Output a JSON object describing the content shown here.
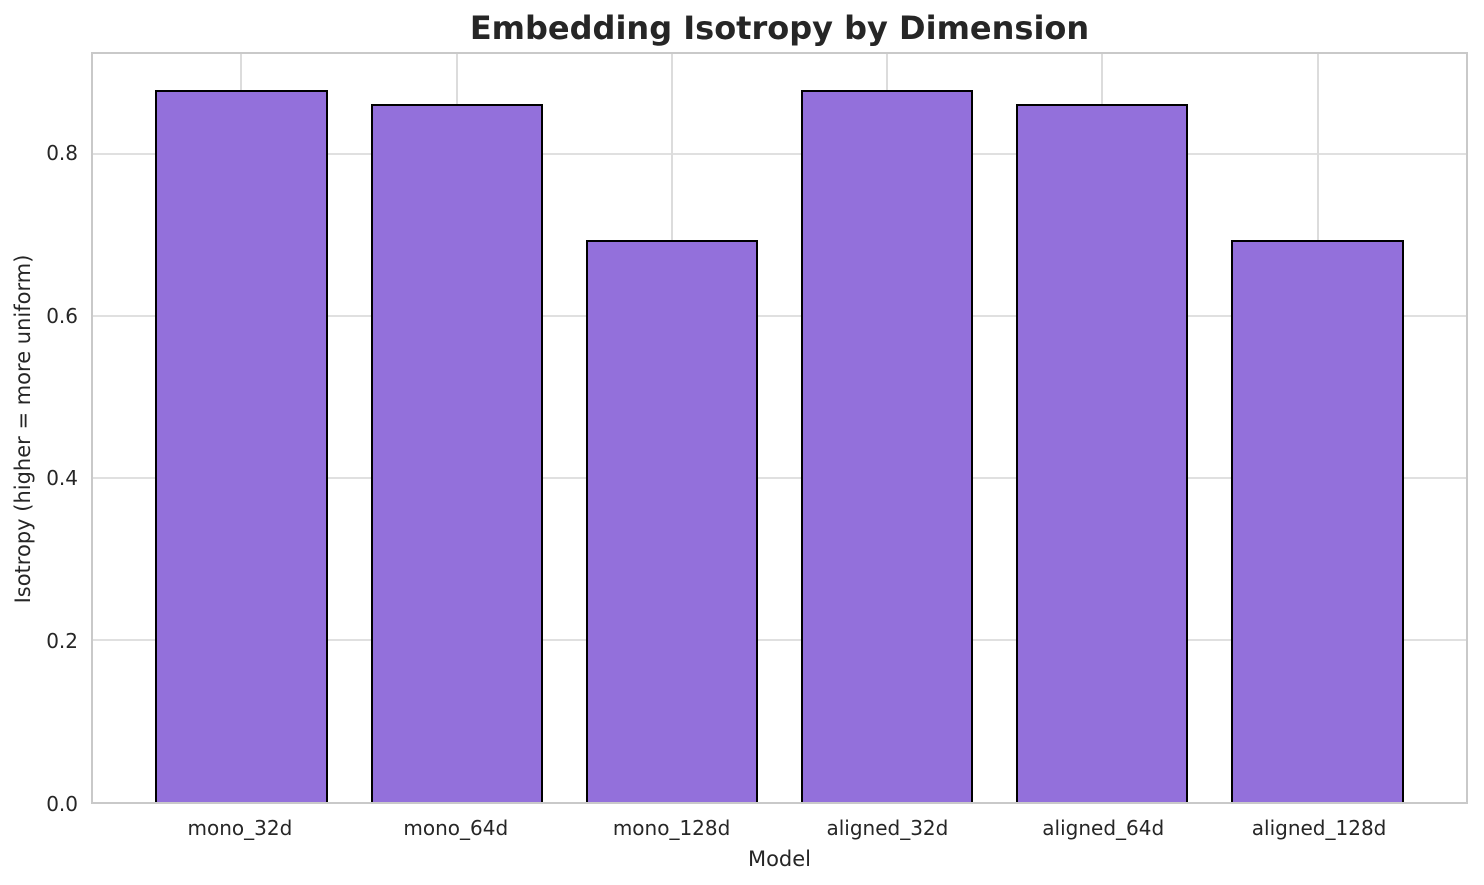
{
  "chart_data": {
    "type": "bar",
    "title": "Embedding Isotropy by Dimension",
    "xlabel": "Model",
    "ylabel": "Isotropy (higher = more uniform)",
    "categories": [
      "mono_32d",
      "mono_64d",
      "mono_128d",
      "aligned_32d",
      "aligned_64d",
      "aligned_128d"
    ],
    "values": [
      0.88,
      0.862,
      0.694,
      0.88,
      0.862,
      0.694
    ],
    "ylim": [
      0,
      0.924
    ],
    "yticks": [
      0.0,
      0.2,
      0.4,
      0.6,
      0.8
    ],
    "ytick_labels": [
      "0.0",
      "0.2",
      "0.4",
      "0.6",
      "0.8"
    ],
    "bar_rel_width": 0.8,
    "grid": true,
    "legend": "none",
    "bar_color": "#9370DB",
    "bar_edge_color": "#000000",
    "grid_color": "#dcdcdc",
    "spine_color": "#c9c9c9",
    "text_color": "#262626",
    "background_color": "#ffffff"
  }
}
